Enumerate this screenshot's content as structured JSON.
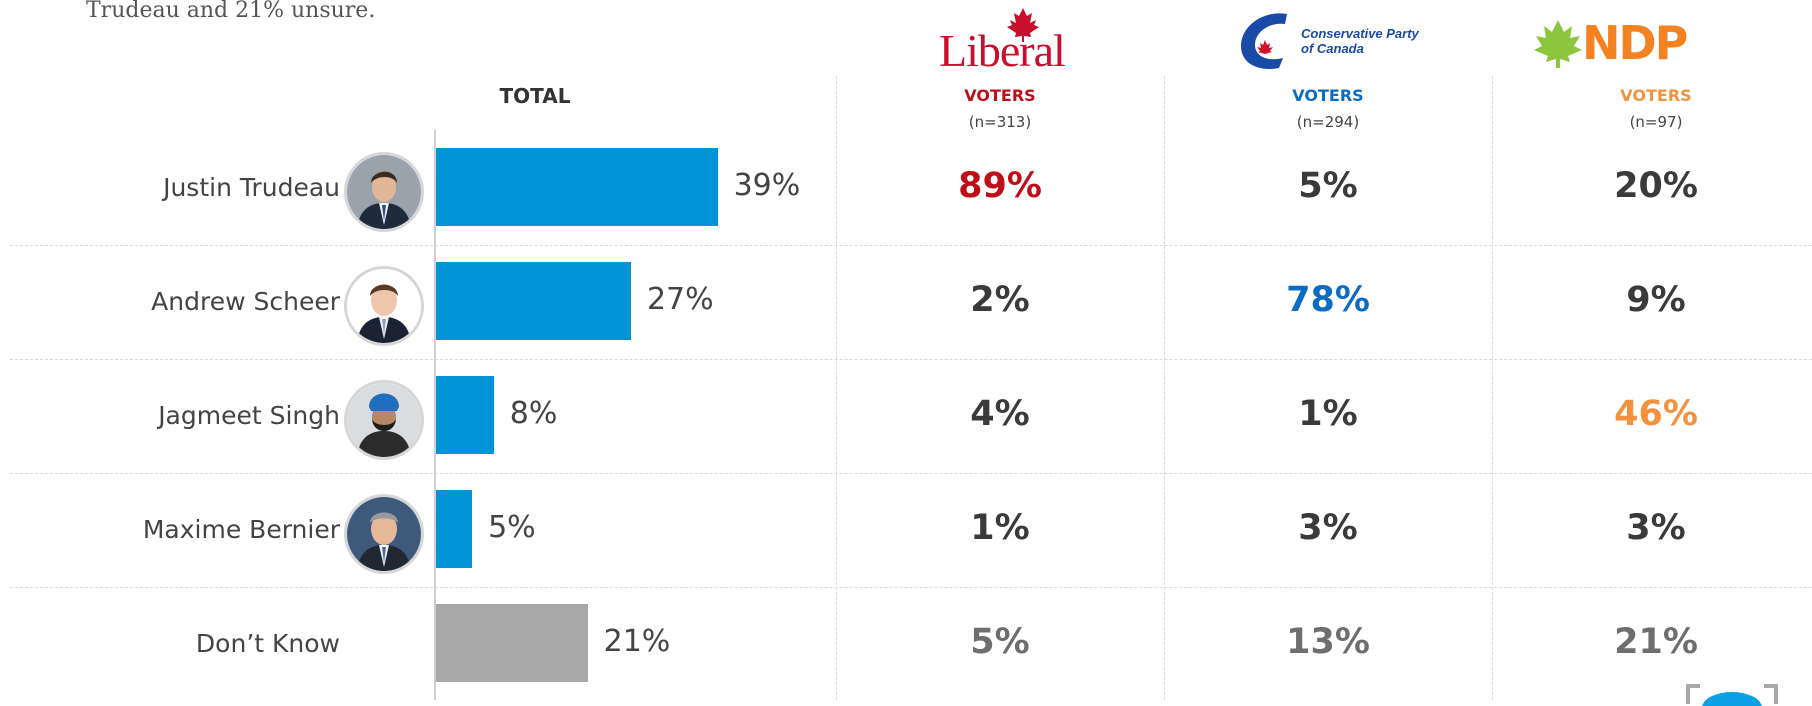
{
  "intro_text": "Trudeau and 21% unsure.",
  "logos": {
    "liberal": "Liberal",
    "cpc_line1": "Conservative Party",
    "cpc_line2": "of Canada",
    "ndp": "NDP"
  },
  "colors": {
    "bar_blue": "#0093d6",
    "bar_gray": "#a8a8a8",
    "liberal_red": "#c00d17",
    "cpc_blue": "#0b6cc2",
    "ndp_orange": "#f3913d",
    "default_dark": "#3a3a3a",
    "default_gray": "#6e6e6e"
  },
  "total_header": "TOTAL",
  "party_columns": [
    {
      "id": "liberal",
      "voters_label": "VOTERS",
      "n_label": "(n=313)",
      "color": "#c00d17"
    },
    {
      "id": "cpc",
      "voters_label": "VOTERS",
      "n_label": "(n=294)",
      "color": "#0b6cc2"
    },
    {
      "id": "ndp",
      "voters_label": "VOTERS",
      "n_label": "(n=97)",
      "color": "#f3913d"
    }
  ],
  "chart_data": {
    "type": "bar",
    "orientation": "horizontal",
    "categories": [
      "Justin Trudeau",
      "Andrew Scheer",
      "Jagmeet Singh",
      "Maxime Bernier",
      "Don’t Know"
    ],
    "values": [
      39,
      27,
      8,
      5,
      21
    ],
    "value_labels": [
      "39%",
      "27%",
      "8%",
      "5%",
      "21%"
    ],
    "bar_colors": [
      "#0093d6",
      "#0093d6",
      "#0093d6",
      "#0093d6",
      "#a8a8a8"
    ],
    "xlim": [
      0,
      100
    ],
    "series_header": "TOTAL",
    "table_columns": [
      {
        "header": "VOTERS",
        "subheader": "(n=313)",
        "values": [
          "89%",
          "2%",
          "4%",
          "1%",
          "5%"
        ],
        "colors": [
          "#c00d17",
          "#3a3a3a",
          "#3a3a3a",
          "#3a3a3a",
          "#6e6e6e"
        ]
      },
      {
        "header": "VOTERS",
        "subheader": "(n=294)",
        "values": [
          "5%",
          "78%",
          "1%",
          "3%",
          "13%"
        ],
        "colors": [
          "#3a3a3a",
          "#0b6cc2",
          "#3a3a3a",
          "#3a3a3a",
          "#6e6e6e"
        ]
      },
      {
        "header": "VOTERS",
        "subheader": "(n=97)",
        "values": [
          "20%",
          "9%",
          "46%",
          "3%",
          "21%"
        ],
        "colors": [
          "#3a3a3a",
          "#3a3a3a",
          "#f3913d",
          "#3a3a3a",
          "#6e6e6e"
        ]
      }
    ]
  },
  "avatars": [
    "trudeau-avatar",
    "scheer-avatar",
    "singh-avatar",
    "bernier-avatar"
  ]
}
